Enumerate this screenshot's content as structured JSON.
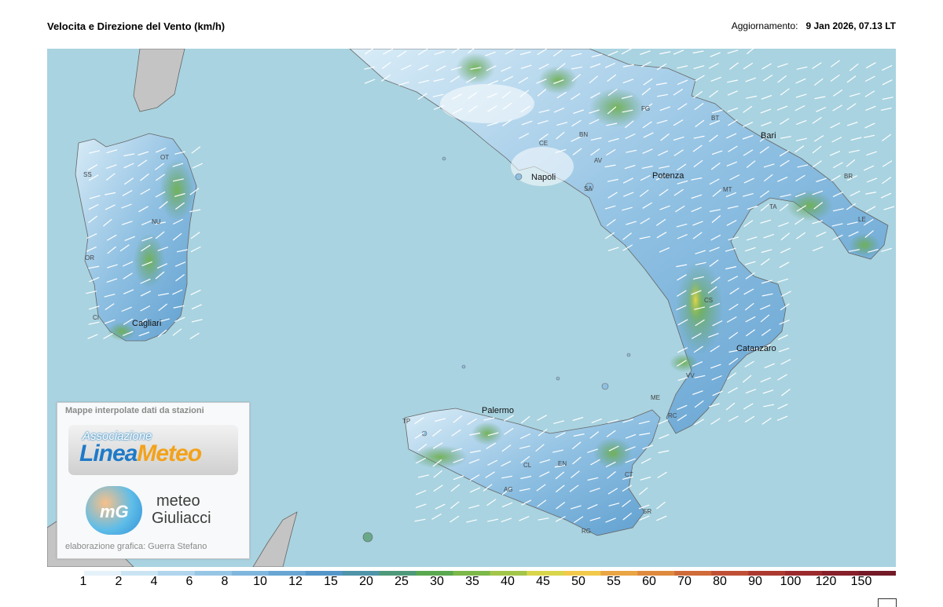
{
  "title": "Velocita e Direzione del Vento  (km/h)",
  "update_label": "Aggiornamento:",
  "update_value": "9 Jan 2026, 07.13 LT",
  "cities": [
    {
      "name": "Napoli",
      "size": "big"
    },
    {
      "name": "Bari",
      "size": "big"
    },
    {
      "name": "Potenza",
      "size": "big"
    },
    {
      "name": "Catanzaro",
      "size": "big"
    },
    {
      "name": "Palermo",
      "size": "big"
    },
    {
      "name": "Cagliari",
      "size": "big"
    },
    {
      "name": "CE",
      "size": "small"
    },
    {
      "name": "BN",
      "size": "small"
    },
    {
      "name": "AV",
      "size": "small"
    },
    {
      "name": "SA",
      "size": "small"
    },
    {
      "name": "FG",
      "size": "small"
    },
    {
      "name": "BT",
      "size": "small"
    },
    {
      "name": "MT",
      "size": "small"
    },
    {
      "name": "TA",
      "size": "small"
    },
    {
      "name": "BR",
      "size": "small"
    },
    {
      "name": "LE",
      "size": "small"
    },
    {
      "name": "CS",
      "size": "small"
    },
    {
      "name": "VV",
      "size": "small"
    },
    {
      "name": "RC",
      "size": "small"
    },
    {
      "name": "ME",
      "size": "small"
    },
    {
      "name": "TP",
      "size": "small"
    },
    {
      "name": "CL",
      "size": "small"
    },
    {
      "name": "EN",
      "size": "small"
    },
    {
      "name": "CT",
      "size": "small"
    },
    {
      "name": "AG",
      "size": "small"
    },
    {
      "name": "RG",
      "size": "small"
    },
    {
      "name": "SR",
      "size": "small"
    },
    {
      "name": "SS",
      "size": "small"
    },
    {
      "name": "OT",
      "size": "small"
    },
    {
      "name": "NU",
      "size": "small"
    },
    {
      "name": "OR",
      "size": "small"
    },
    {
      "name": "CI",
      "size": "small"
    }
  ],
  "logo_box": {
    "header": "Mappe interpolate dati da stazioni",
    "lineameteo_assoc": "Associazione",
    "lineameteo_linea": "Linea",
    "lineameteo_meteo": "Meteo",
    "mg_initials": "mG",
    "mg_line1": "meteo",
    "mg_line2": "Giuliacci",
    "credit": "elaborazione grafica: Guerra Stefano"
  },
  "legend": {
    "labels": [
      "1",
      "2",
      "4",
      "6",
      "8",
      "10",
      "12",
      "15",
      "20",
      "25",
      "30",
      "35",
      "40",
      "45",
      "50",
      "55",
      "60",
      "70",
      "80",
      "90",
      "100",
      "120",
      "150"
    ],
    "colors": [
      "#ffffff",
      "#e6f2fa",
      "#cbe4f3",
      "#b0d5ec",
      "#97c6e5",
      "#7fb6dd",
      "#69a6d4",
      "#5596c8",
      "#4f94a8",
      "#4f9a7a",
      "#5aa84f",
      "#7cb84a",
      "#a3c64a",
      "#d9d64c",
      "#f2c94a",
      "#eaa545",
      "#de8a3e",
      "#d06b3a",
      "#c05035",
      "#ac3a30",
      "#9a2a2c",
      "#86202a",
      "#741a28"
    ],
    "colors_note": "wind speed color scale"
  }
}
